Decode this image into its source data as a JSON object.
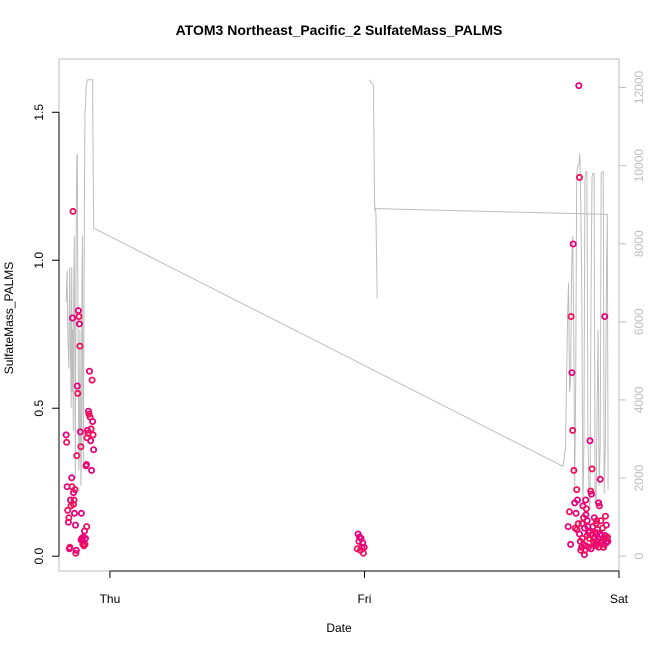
{
  "chart_data": {
    "type": "scatter",
    "title": "ATOM3 Northeast_Pacific_2 SulfateMass_PALMS",
    "xlabel": "Date",
    "ylabel": "SulfateMass_PALMS",
    "x_tick_labels": [
      "Thu",
      "Fri",
      "Sat"
    ],
    "x_range_days": [
      -0.2,
      2.0
    ],
    "ylim": [
      -0.05,
      1.68
    ],
    "y_ticks": [
      0.0,
      0.5,
      1.0,
      1.5
    ],
    "y_tick_labels": [
      "0.0",
      "0.5",
      "1.0",
      "1.5"
    ],
    "y2lim": [
      -380,
      12730
    ],
    "y2_ticks": [
      0,
      2000,
      4000,
      6000,
      8000,
      10000,
      12000
    ],
    "y2_tick_labels": [
      "0",
      "2000",
      "4000",
      "6000",
      "8000",
      "10000",
      "12000"
    ],
    "point_colors": [
      "#e6007e",
      "#f0105a"
    ],
    "line_color": "#bdbdbd",
    "axis_color": "#bdbdbd",
    "grid": false,
    "legend": "none",
    "series": [
      {
        "kind": "points",
        "axis": "left",
        "points": [
          [
            -0.172,
            0.41
          ],
          [
            -0.17,
            0.385
          ],
          [
            -0.168,
            0.235
          ],
          [
            -0.166,
            0.155
          ],
          [
            -0.163,
            0.115
          ],
          [
            -0.161,
            0.13
          ],
          [
            -0.159,
            0.025
          ],
          [
            -0.157,
            0.03
          ],
          [
            -0.155,
            0.19
          ],
          [
            -0.153,
            0.17
          ],
          [
            -0.15,
            0.265
          ],
          [
            -0.149,
            0.235
          ],
          [
            -0.147,
            0.805
          ],
          [
            -0.145,
            1.165
          ],
          [
            -0.143,
            0.215
          ],
          [
            -0.141,
            0.19
          ],
          [
            -0.139,
            0.145
          ],
          [
            -0.137,
            0.225
          ],
          [
            -0.135,
            0.105
          ],
          [
            -0.134,
            0.01
          ],
          [
            -0.132,
            0.02
          ],
          [
            -0.13,
            0.34
          ],
          [
            -0.128,
            0.575
          ],
          [
            -0.126,
            0.55
          ],
          [
            -0.124,
            0.83
          ],
          [
            -0.122,
            0.81
          ],
          [
            -0.12,
            0.785
          ],
          [
            -0.118,
            0.71
          ],
          [
            -0.116,
            0.42
          ],
          [
            -0.114,
            0.37
          ],
          [
            -0.112,
            0.145
          ],
          [
            -0.11,
            0.06
          ],
          [
            -0.108,
            0.05
          ],
          [
            -0.106,
            0.04
          ],
          [
            -0.104,
            0.065
          ],
          [
            -0.102,
            0.035
          ],
          [
            -0.1,
            0.085
          ],
          [
            -0.098,
            0.04
          ],
          [
            -0.096,
            0.06
          ],
          [
            -0.094,
            0.305
          ],
          [
            -0.092,
            0.31
          ],
          [
            -0.09,
            0.4
          ],
          [
            -0.088,
            0.425
          ],
          [
            -0.086,
            0.415
          ],
          [
            -0.084,
            0.49
          ],
          [
            -0.082,
            0.48
          ],
          [
            -0.08,
            0.625
          ],
          [
            -0.078,
            0.47
          ],
          [
            -0.076,
            0.39
          ],
          [
            -0.074,
            0.43
          ],
          [
            -0.072,
            0.29
          ],
          [
            -0.07,
            0.595
          ],
          [
            -0.068,
            0.455
          ],
          [
            -0.066,
            0.41
          ],
          [
            -0.064,
            0.36
          ],
          [
            -0.091,
            0.1
          ],
          [
            -0.113,
            0.055
          ],
          [
            -0.143,
            0.175
          ],
          [
            0.975,
            0.075
          ],
          [
            0.978,
            0.05
          ],
          [
            0.981,
            0.065
          ],
          [
            0.984,
            0.02
          ],
          [
            0.987,
            0.06
          ],
          [
            0.99,
            0.03
          ],
          [
            0.993,
            0.045
          ],
          [
            0.996,
            0.01
          ],
          [
            0.999,
            0.03
          ],
          [
            0.972,
            0.025
          ],
          [
            1.8,
            0.1
          ],
          [
            1.805,
            0.15
          ],
          [
            1.81,
            0.04
          ],
          [
            1.812,
            0.81
          ],
          [
            1.815,
            0.62
          ],
          [
            1.818,
            0.425
          ],
          [
            1.82,
            1.055
          ],
          [
            1.823,
            0.29
          ],
          [
            1.826,
            0.18
          ],
          [
            1.828,
            0.095
          ],
          [
            1.831,
            0.145
          ],
          [
            1.834,
            0.225
          ],
          [
            1.837,
            0.19
          ],
          [
            1.84,
            0.11
          ],
          [
            1.842,
            1.59
          ],
          [
            1.845,
            1.28
          ],
          [
            1.848,
            0.05
          ],
          [
            1.85,
            0.02
          ],
          [
            1.853,
            0.03
          ],
          [
            1.856,
            0.06
          ],
          [
            1.858,
            0.17
          ],
          [
            1.861,
            0.13
          ],
          [
            1.864,
            0.005
          ],
          [
            1.866,
            0.02
          ],
          [
            1.869,
            0.19
          ],
          [
            1.872,
            0.16
          ],
          [
            1.875,
            0.12
          ],
          [
            1.878,
            0.1
          ],
          [
            1.88,
            0.08
          ],
          [
            1.883,
            0.06
          ],
          [
            1.886,
            0.39
          ],
          [
            1.889,
            0.22
          ],
          [
            1.892,
            0.21
          ],
          [
            1.894,
            0.295
          ],
          [
            1.897,
            0.1
          ],
          [
            1.9,
            0.06
          ],
          [
            1.903,
            0.13
          ],
          [
            1.906,
            0.04
          ],
          [
            1.909,
            0.08
          ],
          [
            1.912,
            0.12
          ],
          [
            1.915,
            0.05
          ],
          [
            1.918,
            0.06
          ],
          [
            1.92,
            0.18
          ],
          [
            1.923,
            0.17
          ],
          [
            1.926,
            0.26
          ],
          [
            1.929,
            0.12
          ],
          [
            1.932,
            0.07
          ],
          [
            1.935,
            0.05
          ],
          [
            1.938,
            0.03
          ],
          [
            1.941,
            0.04
          ],
          [
            1.944,
            0.81
          ],
          [
            1.947,
            0.135
          ],
          [
            1.95,
            0.105
          ],
          [
            1.953,
            0.06
          ],
          [
            1.956,
            0.05
          ],
          [
            1.86,
            0.04
          ],
          [
            1.87,
            0.035
          ],
          [
            1.88,
            0.03
          ],
          [
            1.89,
            0.025
          ],
          [
            1.9,
            0.045
          ],
          [
            1.91,
            0.035
          ],
          [
            1.92,
            0.03
          ],
          [
            1.93,
            0.045
          ],
          [
            1.94,
            0.03
          ],
          [
            1.95,
            0.045
          ],
          [
            1.835,
            0.09
          ],
          [
            1.845,
            0.075
          ],
          [
            1.855,
            0.11
          ],
          [
            1.865,
            0.095
          ],
          [
            1.875,
            0.07
          ],
          [
            1.885,
            0.085
          ],
          [
            1.895,
            0.075
          ],
          [
            1.905,
            0.065
          ],
          [
            1.915,
            0.09
          ],
          [
            1.925,
            0.075
          ],
          [
            1.935,
            0.095
          ],
          [
            1.945,
            0.07
          ],
          [
            1.955,
            0.065
          ],
          [
            1.87,
            0.14
          ],
          [
            1.91,
            0.11
          ]
        ]
      },
      {
        "kind": "line",
        "axis": "right",
        "points": [
          [
            -0.172,
            6500
          ],
          [
            -0.168,
            7300
          ],
          [
            -0.165,
            5600
          ],
          [
            -0.161,
            4800
          ],
          [
            -0.158,
            7400
          ],
          [
            -0.155,
            5200
          ],
          [
            -0.152,
            3800
          ],
          [
            -0.15,
            7400
          ],
          [
            -0.148,
            4200
          ],
          [
            -0.146,
            5800
          ],
          [
            -0.144,
            3200
          ],
          [
            -0.142,
            7000
          ],
          [
            -0.14,
            8200
          ],
          [
            -0.138,
            5600
          ],
          [
            -0.136,
            2000
          ],
          [
            -0.134,
            5400
          ],
          [
            -0.132,
            8800
          ],
          [
            -0.13,
            10200
          ],
          [
            -0.128,
            10300
          ],
          [
            -0.126,
            7200
          ],
          [
            -0.124,
            4600
          ],
          [
            -0.122,
            2200
          ],
          [
            -0.12,
            3000
          ],
          [
            -0.118,
            5800
          ],
          [
            -0.116,
            3800
          ],
          [
            -0.114,
            1800
          ],
          [
            -0.112,
            2600
          ],
          [
            -0.11,
            6800
          ],
          [
            -0.108,
            8200
          ],
          [
            -0.106,
            4000
          ],
          [
            -0.104,
            2400
          ],
          [
            -0.102,
            5600
          ],
          [
            -0.1,
            9600
          ],
          [
            -0.098,
            11400
          ],
          [
            -0.096,
            11500
          ],
          [
            -0.094,
            12000
          ],
          [
            -0.092,
            12100
          ],
          [
            -0.09,
            12150
          ],
          [
            -0.088,
            12200
          ],
          [
            -0.068,
            12200
          ],
          [
            -0.064,
            8400
          ],
          [
            1.78,
            2300
          ],
          [
            1.79,
            2800
          ],
          [
            1.798,
            6200
          ],
          [
            1.802,
            7000
          ],
          [
            1.806,
            4200
          ],
          [
            1.81,
            4500
          ],
          [
            1.814,
            7500
          ],
          [
            1.818,
            8200
          ],
          [
            1.822,
            6000
          ],
          [
            1.826,
            1800
          ],
          [
            1.83,
            4400
          ],
          [
            1.834,
            9800
          ],
          [
            1.838,
            10000
          ],
          [
            1.842,
            10000
          ],
          [
            1.846,
            10300
          ],
          [
            1.85,
            9000
          ],
          [
            1.854,
            6800
          ],
          [
            1.858,
            1200
          ],
          [
            1.862,
            2800
          ],
          [
            1.866,
            9600
          ],
          [
            1.87,
            9850
          ],
          [
            1.874,
            9850
          ],
          [
            1.878,
            3200
          ],
          [
            1.882,
            1500
          ],
          [
            1.886,
            1200
          ],
          [
            1.89,
            6600
          ],
          [
            1.894,
            9700
          ],
          [
            1.898,
            9800
          ],
          [
            1.902,
            9800
          ],
          [
            1.906,
            1400
          ],
          [
            1.91,
            1300
          ],
          [
            1.914,
            3800
          ],
          [
            1.918,
            5800
          ],
          [
            1.922,
            1800
          ],
          [
            1.926,
            2800
          ],
          [
            1.93,
            9800
          ],
          [
            1.934,
            9850
          ],
          [
            1.938,
            9850
          ],
          [
            1.942,
            1600
          ],
          [
            1.946,
            2800
          ],
          [
            1.95,
            6700
          ],
          [
            1.954,
            8750
          ],
          [
            1.957,
            1700
          ]
        ]
      },
      {
        "kind": "line",
        "axis": "right",
        "points": [
          [
            1.02,
            12200
          ],
          [
            1.025,
            12150
          ],
          [
            1.03,
            12100
          ],
          [
            1.035,
            12050
          ],
          [
            1.04,
            9000
          ],
          [
            1.045,
            8800
          ],
          [
            1.05,
            6600
          ],
          [
            1.045,
            8800
          ],
          [
            1.04,
            8900
          ],
          [
            1.957,
            8750
          ]
        ]
      }
    ]
  }
}
